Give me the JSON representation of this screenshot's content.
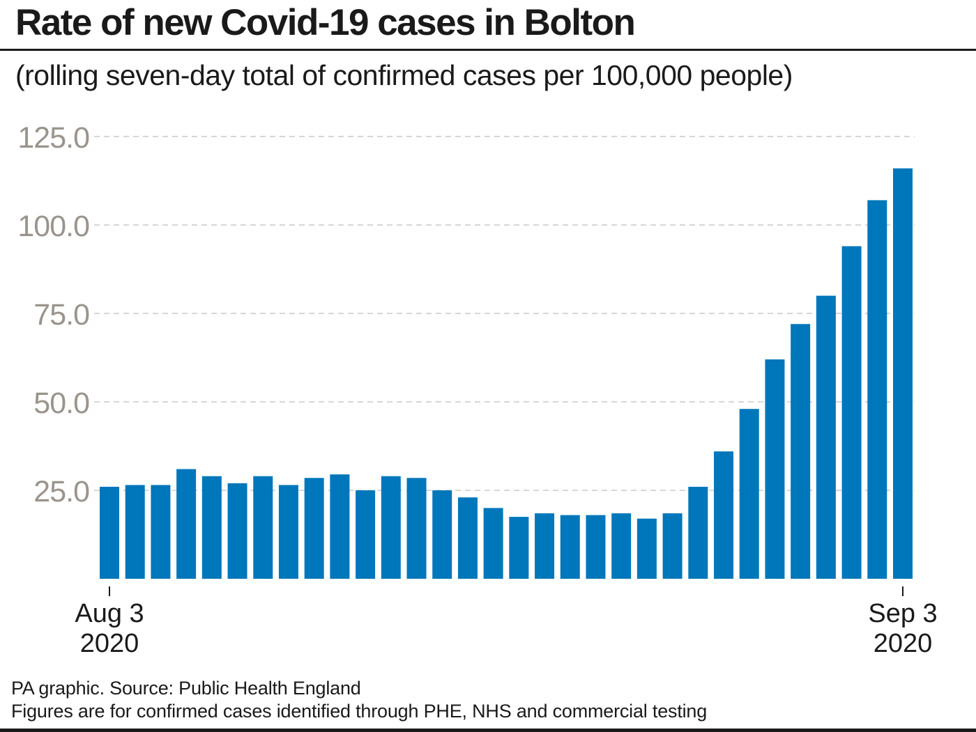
{
  "header": {
    "title": "Rate of new Covid-19 cases in Bolton",
    "subtitle": "(rolling seven-day total of confirmed cases per 100,000 people)"
  },
  "footer": {
    "source": "PA graphic. Source: Public Health England",
    "note": "Figures are for confirmed cases identified through PHE, NHS and commercial testing"
  },
  "colors": {
    "bar": "#0077bb",
    "gridline": "#c8c8c8",
    "tick_label": "#9a948c",
    "text": "#1a1a1a"
  },
  "chart_data": {
    "type": "bar",
    "title": "Rate of new Covid-19 cases in Bolton",
    "subtitle": "(rolling seven-day total of confirmed cases per 100,000 people)",
    "xlabel": "",
    "ylabel": "",
    "ylim": [
      0,
      125
    ],
    "yticks": [
      25,
      50,
      75,
      100,
      125
    ],
    "ytick_labels": [
      "25.0",
      "50.0",
      "75.0",
      "100.0",
      "125.0"
    ],
    "grid": true,
    "x_start": "Aug 3 2020",
    "x_end": "Sep 3 2020",
    "x_tick_labels": [
      {
        "index": 0,
        "line1": "Aug 3",
        "line2": "2020"
      },
      {
        "index": 31,
        "line1": "Sep 3",
        "line2": "2020"
      }
    ],
    "values": [
      26,
      26.5,
      26.5,
      31,
      29,
      27,
      29,
      26.5,
      28.5,
      29.5,
      25,
      29,
      28.5,
      25,
      23,
      20,
      17.5,
      18.5,
      18,
      18,
      18.5,
      17,
      18.5,
      26,
      36,
      48,
      62,
      72,
      80,
      94,
      107,
      116
    ]
  }
}
